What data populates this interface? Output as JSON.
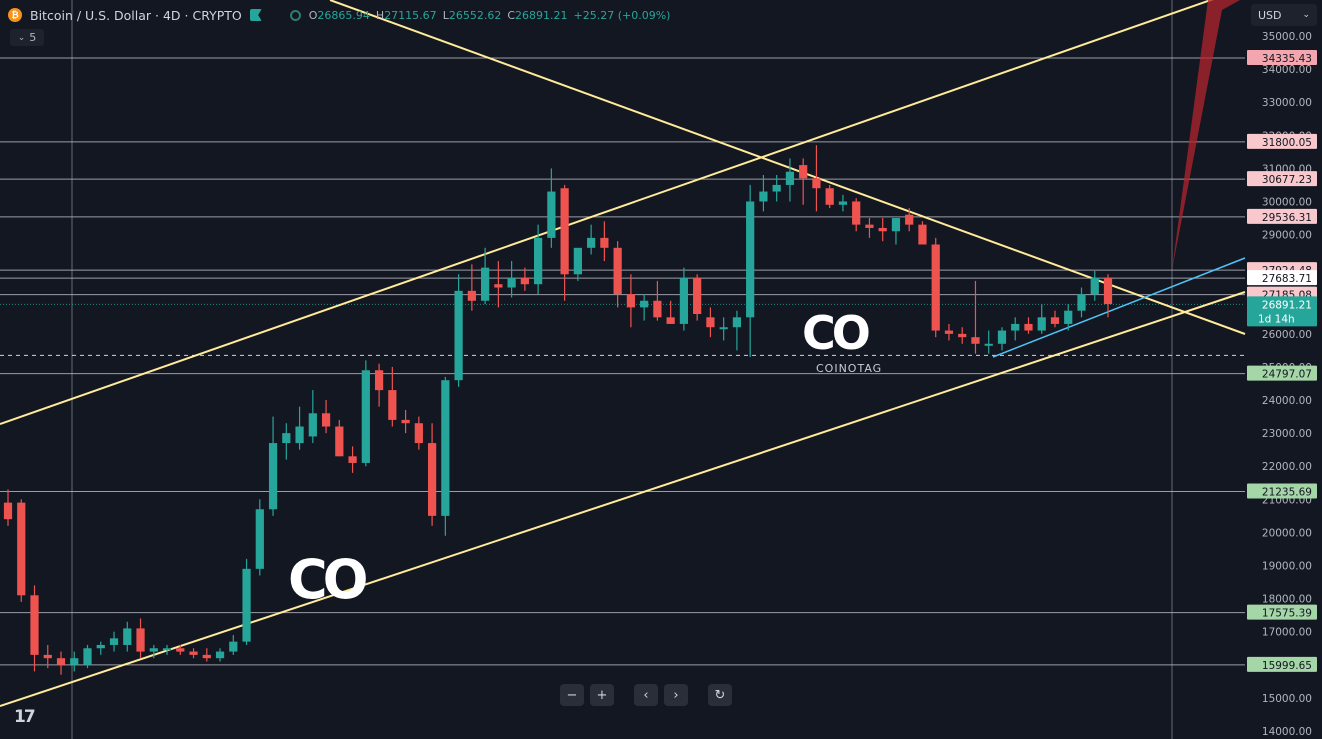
{
  "header": {
    "symbol": "Bitcoin / U.S. Dollar · 4D · CRYPTO",
    "ohlc": [
      {
        "k": "O",
        "v": "26865.94"
      },
      {
        "k": "H",
        "v": "27115.67"
      },
      {
        "k": "L",
        "v": "26552.62"
      },
      {
        "k": "C",
        "v": "26891.21"
      },
      {
        "k": "",
        "v": "+25.27 (+0.09%)"
      }
    ],
    "indicator_count": "5",
    "currency": "USD"
  },
  "chart_data": {
    "type": "candlestick",
    "ylim": [
      14000,
      35500
    ],
    "y_ticks": [
      14000,
      15000,
      16000,
      17000,
      18000,
      19000,
      20000,
      21000,
      22000,
      23000,
      24000,
      25000,
      26000,
      27000,
      28000,
      29000,
      30000,
      31000,
      32000,
      33000,
      34000,
      35000
    ],
    "candles": [
      {
        "o": 20900,
        "h": 21300,
        "l": 20200,
        "c": 20400
      },
      {
        "o": 20900,
        "h": 21000,
        "l": 17900,
        "c": 18100
      },
      {
        "o": 18100,
        "h": 18400,
        "l": 15800,
        "c": 16300
      },
      {
        "o": 16300,
        "h": 16600,
        "l": 15900,
        "c": 16200
      },
      {
        "o": 16200,
        "h": 16400,
        "l": 15700,
        "c": 16000
      },
      {
        "o": 16000,
        "h": 16400,
        "l": 15800,
        "c": 16200
      },
      {
        "o": 16000,
        "h": 16600,
        "l": 15900,
        "c": 16500
      },
      {
        "o": 16500,
        "h": 16700,
        "l": 16300,
        "c": 16600
      },
      {
        "o": 16600,
        "h": 17000,
        "l": 16400,
        "c": 16800
      },
      {
        "o": 16600,
        "h": 17300,
        "l": 16400,
        "c": 17100
      },
      {
        "o": 17100,
        "h": 17400,
        "l": 16200,
        "c": 16400
      },
      {
        "o": 16400,
        "h": 16600,
        "l": 16200,
        "c": 16500
      },
      {
        "o": 16500,
        "h": 16600,
        "l": 16300,
        "c": 16500
      },
      {
        "o": 16500,
        "h": 16600,
        "l": 16300,
        "c": 16400
      },
      {
        "o": 16400,
        "h": 16500,
        "l": 16200,
        "c": 16300
      },
      {
        "o": 16300,
        "h": 16500,
        "l": 16100,
        "c": 16200
      },
      {
        "o": 16200,
        "h": 16500,
        "l": 16100,
        "c": 16400
      },
      {
        "o": 16400,
        "h": 16900,
        "l": 16300,
        "c": 16700
      },
      {
        "o": 16700,
        "h": 19200,
        "l": 16600,
        "c": 18900
      },
      {
        "o": 18900,
        "h": 21000,
        "l": 18700,
        "c": 20700
      },
      {
        "o": 20700,
        "h": 23500,
        "l": 20500,
        "c": 22700
      },
      {
        "o": 22700,
        "h": 23300,
        "l": 22200,
        "c": 23000
      },
      {
        "o": 22700,
        "h": 23800,
        "l": 22500,
        "c": 23200
      },
      {
        "o": 22900,
        "h": 24300,
        "l": 22700,
        "c": 23600
      },
      {
        "o": 23600,
        "h": 24000,
        "l": 23000,
        "c": 23200
      },
      {
        "o": 23200,
        "h": 23400,
        "l": 22300,
        "c": 22300
      },
      {
        "o": 22300,
        "h": 22600,
        "l": 21800,
        "c": 22100
      },
      {
        "o": 22100,
        "h": 25200,
        "l": 22000,
        "c": 24900
      },
      {
        "o": 24900,
        "h": 25100,
        "l": 23800,
        "c": 24300
      },
      {
        "o": 24300,
        "h": 25000,
        "l": 23200,
        "c": 23400
      },
      {
        "o": 23400,
        "h": 23700,
        "l": 23000,
        "c": 23300
      },
      {
        "o": 23300,
        "h": 23500,
        "l": 22500,
        "c": 22700
      },
      {
        "o": 22700,
        "h": 23300,
        "l": 20200,
        "c": 20500
      },
      {
        "o": 20500,
        "h": 24700,
        "l": 19900,
        "c": 24600
      },
      {
        "o": 24600,
        "h": 27800,
        "l": 24400,
        "c": 27300
      },
      {
        "o": 27300,
        "h": 28100,
        "l": 26700,
        "c": 27000
      },
      {
        "o": 27000,
        "h": 28600,
        "l": 26900,
        "c": 28000
      },
      {
        "o": 27500,
        "h": 28200,
        "l": 26800,
        "c": 27400
      },
      {
        "o": 27400,
        "h": 28200,
        "l": 27100,
        "c": 27700
      },
      {
        "o": 27700,
        "h": 28000,
        "l": 27300,
        "c": 27500
      },
      {
        "o": 27500,
        "h": 29300,
        "l": 27200,
        "c": 28900
      },
      {
        "o": 28900,
        "h": 31000,
        "l": 28600,
        "c": 30300
      },
      {
        "o": 30400,
        "h": 30500,
        "l": 27000,
        "c": 27800
      },
      {
        "o": 27800,
        "h": 28500,
        "l": 27600,
        "c": 28600
      },
      {
        "o": 28600,
        "h": 29300,
        "l": 28400,
        "c": 28900
      },
      {
        "o": 28900,
        "h": 29400,
        "l": 28200,
        "c": 28600
      },
      {
        "o": 28600,
        "h": 28800,
        "l": 26800,
        "c": 27200
      },
      {
        "o": 27200,
        "h": 27800,
        "l": 26200,
        "c": 26800
      },
      {
        "o": 26800,
        "h": 27200,
        "l": 26400,
        "c": 27000
      },
      {
        "o": 27000,
        "h": 27600,
        "l": 26400,
        "c": 26500
      },
      {
        "o": 26500,
        "h": 27000,
        "l": 26300,
        "c": 26300
      },
      {
        "o": 26300,
        "h": 28000,
        "l": 26100,
        "c": 27700
      },
      {
        "o": 27700,
        "h": 27800,
        "l": 26400,
        "c": 26600
      },
      {
        "o": 26500,
        "h": 26800,
        "l": 25900,
        "c": 26200
      },
      {
        "o": 26200,
        "h": 26500,
        "l": 25800,
        "c": 26200
      },
      {
        "o": 26200,
        "h": 26700,
        "l": 25500,
        "c": 26500
      },
      {
        "o": 26500,
        "h": 30500,
        "l": 25300,
        "c": 30000
      },
      {
        "o": 30000,
        "h": 30800,
        "l": 29700,
        "c": 30300
      },
      {
        "o": 30300,
        "h": 30800,
        "l": 30000,
        "c": 30500
      },
      {
        "o": 30500,
        "h": 31300,
        "l": 30000,
        "c": 30900
      },
      {
        "o": 31100,
        "h": 31300,
        "l": 29900,
        "c": 30700
      },
      {
        "o": 30700,
        "h": 31700,
        "l": 29700,
        "c": 30400
      },
      {
        "o": 30400,
        "h": 30500,
        "l": 29800,
        "c": 29900
      },
      {
        "o": 29900,
        "h": 30200,
        "l": 29700,
        "c": 30000
      },
      {
        "o": 30000,
        "h": 30100,
        "l": 29100,
        "c": 29300
      },
      {
        "o": 29300,
        "h": 29500,
        "l": 28900,
        "c": 29200
      },
      {
        "o": 29200,
        "h": 29500,
        "l": 28800,
        "c": 29100
      },
      {
        "o": 29100,
        "h": 29500,
        "l": 28700,
        "c": 29500
      },
      {
        "o": 29600,
        "h": 29800,
        "l": 29100,
        "c": 29300
      },
      {
        "o": 29300,
        "h": 29400,
        "l": 28700,
        "c": 28700
      },
      {
        "o": 28700,
        "h": 28900,
        "l": 25900,
        "c": 26100
      },
      {
        "o": 26100,
        "h": 26300,
        "l": 25800,
        "c": 26000
      },
      {
        "o": 26000,
        "h": 26200,
        "l": 25700,
        "c": 25900
      },
      {
        "o": 25900,
        "h": 27600,
        "l": 25400,
        "c": 25700
      },
      {
        "o": 25700,
        "h": 26100,
        "l": 25400,
        "c": 25700
      },
      {
        "o": 25700,
        "h": 26200,
        "l": 25500,
        "c": 26100
      },
      {
        "o": 26100,
        "h": 26500,
        "l": 25800,
        "c": 26300
      },
      {
        "o": 26300,
        "h": 26500,
        "l": 26000,
        "c": 26100
      },
      {
        "o": 26100,
        "h": 26900,
        "l": 26000,
        "c": 26500
      },
      {
        "o": 26500,
        "h": 26700,
        "l": 26200,
        "c": 26300
      },
      {
        "o": 26300,
        "h": 26900,
        "l": 26100,
        "c": 26700
      },
      {
        "o": 26700,
        "h": 27400,
        "l": 26500,
        "c": 27200
      },
      {
        "o": 27200,
        "h": 27900,
        "l": 27000,
        "c": 27700
      },
      {
        "o": 27700,
        "h": 27800,
        "l": 26500,
        "c": 26900
      }
    ],
    "horizontal_levels": [
      {
        "value": 34335.43,
        "label": "34335.43",
        "tag_color": "#f3a6ae",
        "line_color": "#b2b5be"
      },
      {
        "value": 31800.05,
        "label": "31800.05",
        "tag_color": "#f8c8cc",
        "line_color": "#b2b5be"
      },
      {
        "value": 30677.23,
        "label": "30677.23",
        "tag_color": "#f8c8cc",
        "line_color": "#b2b5be"
      },
      {
        "value": 29536.31,
        "label": "29536.31",
        "tag_color": "#f8c8cc",
        "line_color": "#b2b5be"
      },
      {
        "value": 27924.48,
        "label": "27924.48",
        "tag_color": "#f8c8cc",
        "line_color": "#b2b5be"
      },
      {
        "value": 27683.71,
        "label": "27683.71",
        "tag_color": "#ffffff",
        "line_color": "#b2b5be"
      },
      {
        "value": 27185.08,
        "label": "27185.08",
        "tag_color": "#f8c8cc",
        "line_color": "#b2b5be"
      },
      {
        "value": 24797.07,
        "label": "24797.07",
        "tag_color": "#a5d6a7",
        "line_color": "#b2b5be"
      },
      {
        "value": 21235.69,
        "label": "21235.69",
        "tag_color": "#a5d6a7",
        "line_color": "#b2b5be"
      },
      {
        "value": 17575.39,
        "label": "17575.39",
        "tag_color": "#a5d6a7",
        "line_color": "#b2b5be"
      },
      {
        "value": 15999.65,
        "label": "15999.65",
        "tag_color": "#a5d6a7",
        "line_color": "#b2b5be"
      }
    ],
    "current_price": {
      "value": 26891.21,
      "label": "26891.21",
      "countdown": "1d 14h",
      "color": "#26a69a"
    },
    "crosshair": {
      "value": 25350,
      "label": ""
    },
    "colors": {
      "up": "#26a69a",
      "down": "#ef5350",
      "trend": "#ffeb99",
      "minor_trend": "#4fc3f7",
      "grid": "#b2b5be",
      "background": "#131722"
    }
  },
  "watermark": {
    "logo_text": "CO",
    "caption": "COINOTAG"
  },
  "toolbar": {
    "buttons": [
      {
        "name": "zoom-out",
        "glyph": "−"
      },
      {
        "name": "zoom-in",
        "glyph": "+"
      },
      {
        "name": "scroll-left",
        "glyph": "‹"
      },
      {
        "name": "scroll-right",
        "glyph": "›"
      },
      {
        "name": "reset",
        "glyph": "↻"
      }
    ]
  },
  "branding": {
    "tv_logo": "17"
  }
}
